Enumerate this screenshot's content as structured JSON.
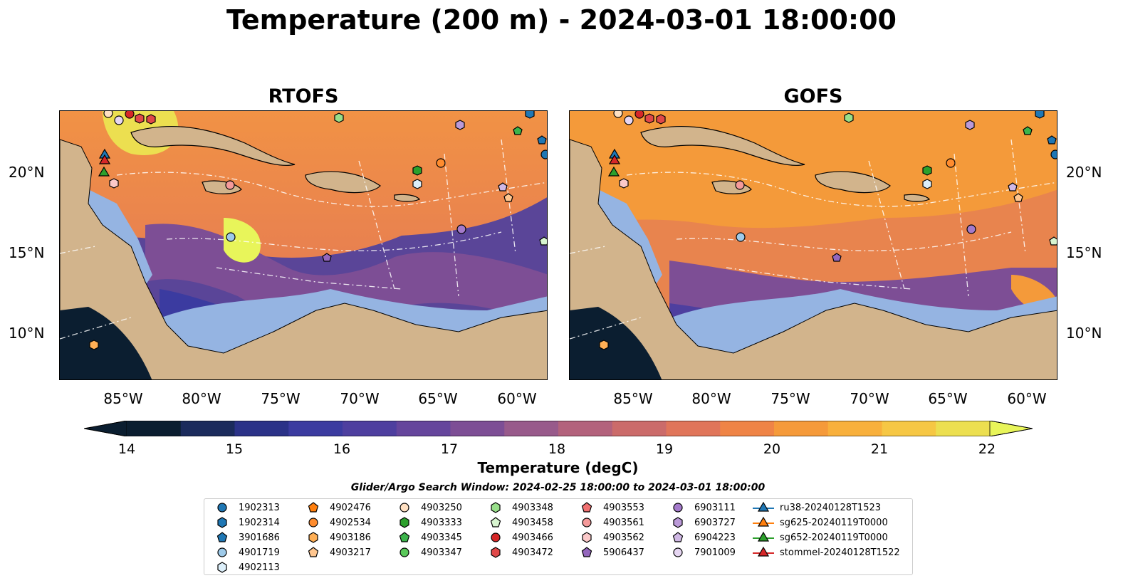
{
  "title": "Temperature (200 m) - 2024-03-01 18:00:00",
  "colors": {
    "land": "#d2b48c",
    "shelf": "#95b4e2",
    "colormap": [
      "#0b1e30",
      "#1b2b5c",
      "#2b3288",
      "#3b3ba0",
      "#4e3f9f",
      "#65459c",
      "#7d4e95",
      "#985a8b",
      "#b3627c",
      "#cb6b6a",
      "#e0755a",
      "#ef8446",
      "#f59a3a",
      "#f8b03c",
      "#f6c744",
      "#ecdf50",
      "#e8f55a"
    ]
  },
  "panels": [
    {
      "title": "RTOFS"
    },
    {
      "title": "GOFS"
    }
  ],
  "axes": {
    "lon_ticks": [
      "85°W",
      "80°W",
      "75°W",
      "70°W",
      "65°W",
      "60°W"
    ],
    "lat_ticks": [
      "20°N",
      "15°N",
      "10°N"
    ]
  },
  "colorbar": {
    "ticks": [
      "14",
      "15",
      "16",
      "17",
      "18",
      "19",
      "20",
      "21",
      "22"
    ],
    "label": "Temperature (degC)"
  },
  "search_window": "Glider/Argo Search Window: 2024-02-25 18:00:00 to 2024-03-01 18:00:00",
  "legend": [
    {
      "label": "1902313",
      "marker": "circle",
      "color": "#1f77b4"
    },
    {
      "label": "1902314",
      "marker": "hexagon",
      "color": "#1f77b4"
    },
    {
      "label": "3901686",
      "marker": "pentagon",
      "color": "#1f77b4"
    },
    {
      "label": "4901719",
      "marker": "circle",
      "color": "#9ecae9"
    },
    {
      "label": "4902113",
      "marker": "hexagon",
      "color": "#dceffa"
    },
    {
      "label": "4902476",
      "marker": "pentagon",
      "color": "#ff7f0e"
    },
    {
      "label": "4902534",
      "marker": "circle",
      "color": "#ff8c2e"
    },
    {
      "label": "4903186",
      "marker": "hexagon",
      "color": "#ffaf55"
    },
    {
      "label": "4903217",
      "marker": "pentagon",
      "color": "#ffc68f"
    },
    {
      "label": "4903250",
      "marker": "circle",
      "color": "#ffe0c2"
    },
    {
      "label": "4903333",
      "marker": "hexagon",
      "color": "#2ca02c"
    },
    {
      "label": "4903345",
      "marker": "pentagon",
      "color": "#3cb44b"
    },
    {
      "label": "4903347",
      "marker": "circle",
      "color": "#5ac85a"
    },
    {
      "label": "4903348",
      "marker": "hexagon",
      "color": "#98df8a"
    },
    {
      "label": "4903458",
      "marker": "pentagon",
      "color": "#d8f5d0"
    },
    {
      "label": "4903466",
      "marker": "circle",
      "color": "#d62728"
    },
    {
      "label": "4903472",
      "marker": "hexagon",
      "color": "#e04848"
    },
    {
      "label": "4903553",
      "marker": "pentagon",
      "color": "#f07070"
    },
    {
      "label": "4903561",
      "marker": "circle",
      "color": "#f59a9a"
    },
    {
      "label": "4903562",
      "marker": "hexagon",
      "color": "#fbc9c9"
    },
    {
      "label": "5906437",
      "marker": "pentagon",
      "color": "#9467bd"
    },
    {
      "label": "6903111",
      "marker": "circle",
      "color": "#a47acb"
    },
    {
      "label": "6903727",
      "marker": "hexagon",
      "color": "#bb9ad8"
    },
    {
      "label": "6904223",
      "marker": "pentagon",
      "color": "#d0b8e5"
    },
    {
      "label": "7901009",
      "marker": "circle",
      "color": "#e6d6f2"
    },
    {
      "label": "ru38-20240128T1523",
      "marker": "triangle-line",
      "color": "#1f77b4"
    },
    {
      "label": "sg625-20240119T0000",
      "marker": "triangle-line",
      "color": "#ff7f0e"
    },
    {
      "label": "sg652-20240119T0000",
      "marker": "triangle-line",
      "color": "#2ca02c"
    },
    {
      "label": "stommel-20240128T1522",
      "marker": "triangle-line",
      "color": "#d62728"
    }
  ]
}
